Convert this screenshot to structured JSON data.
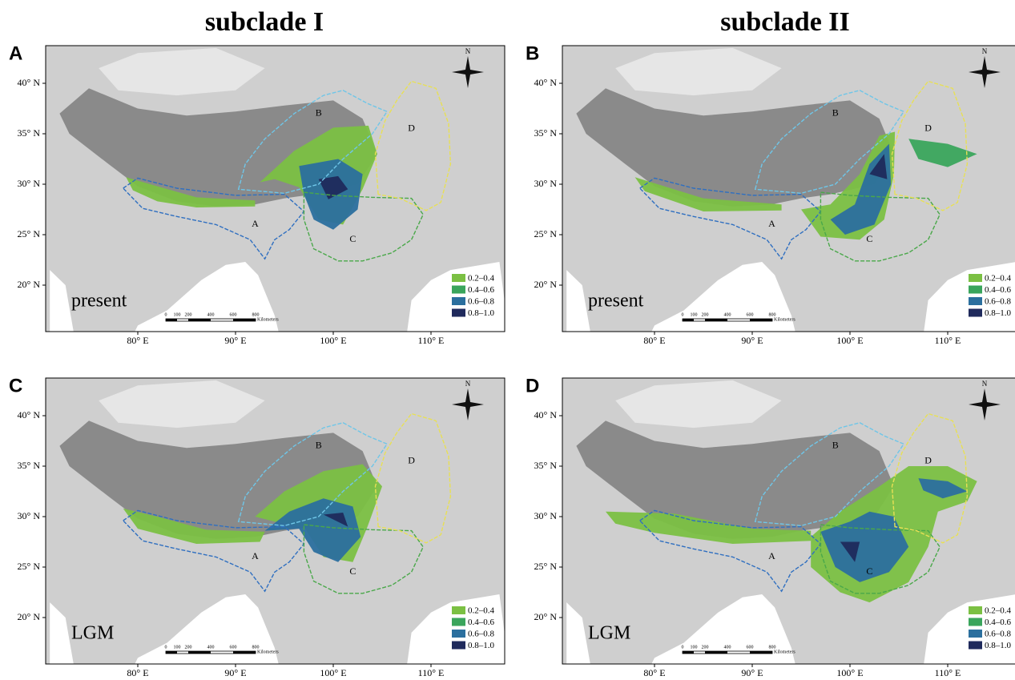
{
  "columns": [
    "subclade I",
    "subclade II"
  ],
  "panels": [
    {
      "letter": "A",
      "period": "present"
    },
    {
      "letter": "B",
      "period": "present"
    },
    {
      "letter": "C",
      "period": "LGM"
    },
    {
      "letter": "D",
      "period": "LGM"
    }
  ],
  "y_axis_labels": [
    "40° N",
    "35° N",
    "30° N",
    "25° N",
    "20° N"
  ],
  "x_axis_labels": [
    "80° E",
    "90° E",
    "100° E",
    "110° E"
  ],
  "regions": [
    "A",
    "B",
    "C",
    "D"
  ],
  "legend": [
    {
      "label": "0.2–0.4",
      "color": "#7bc043"
    },
    {
      "label": "0.4–0.6",
      "color": "#3aa55c"
    },
    {
      "label": "0.6–0.8",
      "color": "#2b6f9e"
    },
    {
      "label": "0.8–1.0",
      "color": "#1f2a5c"
    }
  ],
  "scale_bar": {
    "ticks": [
      "0",
      "100",
      "200",
      "400",
      "600",
      "800"
    ],
    "unit": "Kilometers"
  },
  "compass": "N"
}
